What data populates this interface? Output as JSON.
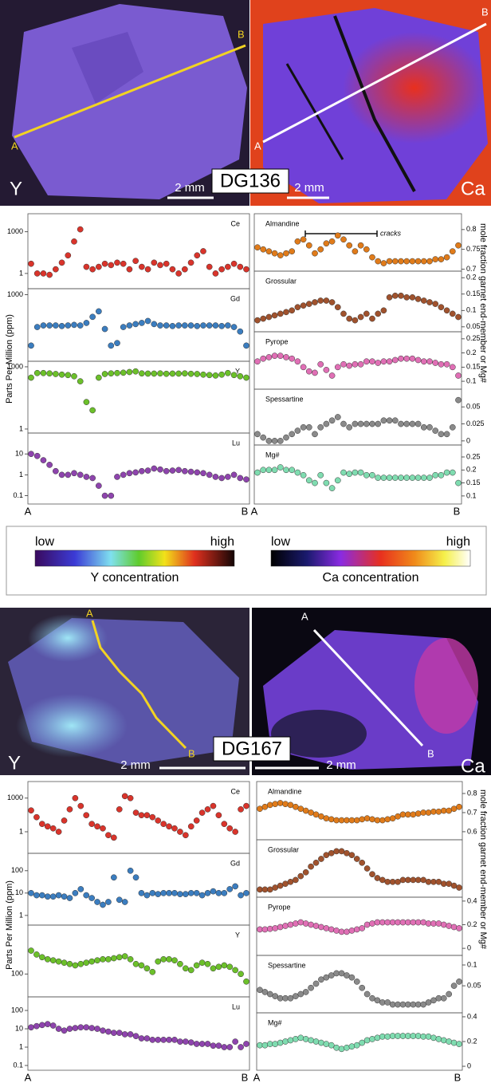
{
  "figures": [
    {
      "sample": "DG136",
      "map_left": "Y",
      "map_right": "Ca",
      "scale_bar": "2 mm",
      "ends": [
        "A",
        "B"
      ]
    },
    {
      "sample": "DG167",
      "map_left": "Y",
      "map_right": "Ca",
      "scale_bar": "2 mm",
      "ends": [
        "A",
        "B"
      ]
    }
  ],
  "y_axis_left": "Parts Per Million (ppm)",
  "y_axis_right": "mole fraction garnet end-member or Mg#",
  "legend": {
    "low": "low",
    "high": "high",
    "y_bar": "Y concentration",
    "ca_bar": "Ca concentration"
  },
  "chart_data": [
    {
      "type": "scatter",
      "title": "Ce",
      "color": "#d9342b",
      "log": true,
      "tick_side": "left",
      "ylim": [
        0.08,
        20000
      ],
      "yticks": [
        1,
        1000
      ],
      "values": [
        5,
        1,
        1,
        0.8,
        2,
        6,
        20,
        200,
        1500,
        3,
        2,
        3,
        5,
        4,
        6,
        5,
        2,
        8,
        3,
        2,
        6,
        4,
        5,
        2,
        1,
        2,
        6,
        20,
        40,
        3,
        1,
        2,
        3,
        5,
        3,
        2
      ]
    },
    {
      "type": "scatter",
      "title": "Gd",
      "color": "#3b7dbf",
      "log": true,
      "tick_side": "left",
      "ylim": [
        0.5,
        2000
      ],
      "yticks": [
        1000
      ],
      "values": [
        3,
        25,
        30,
        30,
        30,
        28,
        30,
        32,
        30,
        40,
        80,
        150,
        20,
        3,
        4,
        25,
        30,
        35,
        40,
        50,
        35,
        30,
        30,
        28,
        30,
        30,
        30,
        28,
        30,
        30,
        30,
        28,
        30,
        25,
        15,
        3
      ]
    },
    {
      "type": "scatter",
      "title": "Y",
      "color": "#6cc02a",
      "log": true,
      "tick_side": "left",
      "ylim": [
        0.64,
        1850
      ],
      "yticks": [
        1,
        1000
      ],
      "values": [
        300,
        500,
        500,
        480,
        450,
        420,
        400,
        350,
        200,
        20,
        8,
        300,
        450,
        480,
        500,
        520,
        560,
        600,
        480,
        470,
        470,
        480,
        460,
        470,
        470,
        480,
        460,
        450,
        420,
        400,
        380,
        420,
        500,
        400,
        350,
        300
      ]
    },
    {
      "type": "scatter",
      "title": "Lu",
      "color": "#8e44ad",
      "log": true,
      "tick_side": "left",
      "ylim": [
        0.04,
        100
      ],
      "yticks": [
        0.1,
        1,
        10
      ],
      "values": [
        10,
        8,
        5,
        3,
        1.5,
        1,
        1,
        1.2,
        1,
        0.8,
        0.7,
        0.3,
        0.1,
        0.1,
        0.8,
        1,
        1.2,
        1.3,
        1.5,
        1.6,
        2,
        1.8,
        1.5,
        1.6,
        1.7,
        1.5,
        1.4,
        1.3,
        1.2,
        1,
        0.8,
        0.7,
        0.8,
        1,
        0.7,
        0.6
      ]
    },
    {
      "type": "scatter",
      "title": "Almandine",
      "color": "#e07b1a",
      "log": false,
      "tick_side": "right",
      "ylim": [
        0.695,
        0.84
      ],
      "yticks": [
        0.7,
        0.75,
        0.8
      ],
      "annotation": "cracks",
      "values": [
        0.755,
        0.75,
        0.745,
        0.74,
        0.735,
        0.74,
        0.745,
        0.77,
        0.775,
        0.76,
        0.74,
        0.75,
        0.765,
        0.77,
        0.785,
        0.775,
        0.76,
        0.745,
        0.76,
        0.75,
        0.73,
        0.72,
        0.715,
        0.72,
        0.72,
        0.72,
        0.72,
        0.72,
        0.72,
        0.72,
        0.72,
        0.725,
        0.725,
        0.73,
        0.745,
        0.76
      ]
    },
    {
      "type": "scatter",
      "title": "Grossular",
      "color": "#a0522d",
      "log": false,
      "tick_side": "right",
      "ylim": [
        0.035,
        0.22
      ],
      "yticks": [
        0.05,
        0.1,
        0.15,
        0.2
      ],
      "values": [
        0.07,
        0.075,
        0.08,
        0.085,
        0.09,
        0.095,
        0.1,
        0.11,
        0.115,
        0.12,
        0.125,
        0.13,
        0.13,
        0.125,
        0.11,
        0.09,
        0.075,
        0.07,
        0.08,
        0.09,
        0.075,
        0.09,
        0.1,
        0.14,
        0.145,
        0.145,
        0.14,
        0.14,
        0.135,
        0.13,
        0.125,
        0.12,
        0.11,
        0.1,
        0.09,
        0.08
      ]
    },
    {
      "type": "scatter",
      "title": "Pyrope",
      "color": "#e06fb5",
      "log": false,
      "tick_side": "right",
      "ylim": [
        0.072,
        0.275
      ],
      "yticks": [
        0.1,
        0.15,
        0.2,
        0.25
      ],
      "values": [
        0.17,
        0.18,
        0.185,
        0.19,
        0.19,
        0.185,
        0.18,
        0.17,
        0.15,
        0.135,
        0.13,
        0.16,
        0.14,
        0.12,
        0.15,
        0.16,
        0.155,
        0.16,
        0.16,
        0.17,
        0.17,
        0.165,
        0.17,
        0.17,
        0.175,
        0.18,
        0.18,
        0.18,
        0.175,
        0.17,
        0.17,
        0.165,
        0.16,
        0.16,
        0.15,
        0.12
      ]
    },
    {
      "type": "scatter",
      "title": "Spessartine",
      "color": "#8a8a8a",
      "log": false,
      "tick_side": "right",
      "ylim": [
        -0.006,
        0.076
      ],
      "yticks": [
        0,
        0.025,
        0.05
      ],
      "values": [
        0.01,
        0.005,
        0,
        0,
        0,
        0.005,
        0.01,
        0.015,
        0.02,
        0.02,
        0.01,
        0.02,
        0.025,
        0.03,
        0.035,
        0.025,
        0.02,
        0.025,
        0.025,
        0.025,
        0.025,
        0.025,
        0.03,
        0.03,
        0.03,
        0.025,
        0.025,
        0.025,
        0.025,
        0.02,
        0.02,
        0.015,
        0.01,
        0.01,
        0.02,
        0.06
      ]
    },
    {
      "type": "scatter",
      "title": "Mg#",
      "color": "#7fdcb0",
      "log": false,
      "tick_side": "right",
      "ylim": [
        0.069,
        0.296
      ],
      "yticks": [
        0.1,
        0.15,
        0.2,
        0.25
      ],
      "values": [
        0.19,
        0.2,
        0.2,
        0.2,
        0.21,
        0.2,
        0.2,
        0.19,
        0.18,
        0.16,
        0.15,
        0.18,
        0.15,
        0.13,
        0.16,
        0.19,
        0.185,
        0.19,
        0.19,
        0.18,
        0.18,
        0.17,
        0.17,
        0.17,
        0.17,
        0.17,
        0.17,
        0.17,
        0.17,
        0.17,
        0.17,
        0.18,
        0.18,
        0.19,
        0.19,
        0.15
      ]
    },
    {
      "type": "scatter",
      "title": "Ce",
      "color": "#d9342b",
      "log": true,
      "tick_side": "left",
      "ylim": [
        0.012,
        30000
      ],
      "yticks": [
        1,
        1000
      ],
      "values": [
        80,
        20,
        5,
        3,
        2,
        1,
        10,
        100,
        1000,
        200,
        30,
        5,
        3,
        2,
        0.5,
        0.3,
        100,
        1500,
        1000,
        50,
        30,
        30,
        20,
        10,
        5,
        3,
        2,
        1,
        0.5,
        3,
        10,
        50,
        100,
        200,
        30,
        5,
        2,
        1,
        100,
        200
      ]
    },
    {
      "type": "scatter",
      "title": "Gd",
      "color": "#3b7dbf",
      "log": true,
      "tick_side": "left",
      "ylim": [
        0.37,
        600
      ],
      "yticks": [
        1,
        10,
        100
      ],
      "values": [
        10,
        8,
        8,
        7,
        7,
        8,
        7,
        6,
        10,
        15,
        8,
        6,
        4,
        3,
        4,
        50,
        5,
        4,
        100,
        50,
        10,
        8,
        10,
        9,
        10,
        10,
        10,
        9,
        9,
        10,
        10,
        8,
        10,
        12,
        10,
        10,
        15,
        20,
        8,
        10
      ]
    },
    {
      "type": "scatter",
      "title": "Y",
      "color": "#6cc02a",
      "log": true,
      "tick_side": "left",
      "ylim": [
        34,
        1000
      ],
      "yticks": [
        100
      ],
      "values": [
        300,
        250,
        220,
        200,
        190,
        180,
        170,
        160,
        150,
        160,
        170,
        180,
        190,
        200,
        200,
        210,
        220,
        230,
        200,
        160,
        150,
        130,
        110,
        180,
        200,
        200,
        190,
        160,
        130,
        120,
        150,
        170,
        160,
        130,
        140,
        150,
        140,
        120,
        100,
        70
      ]
    },
    {
      "type": "scatter",
      "title": "Lu",
      "color": "#8e44ad",
      "log": true,
      "tick_side": "left",
      "ylim": [
        0.055,
        550
      ],
      "yticks": [
        0.1,
        1,
        10,
        100
      ],
      "values": [
        12,
        14,
        16,
        18,
        15,
        10,
        8,
        10,
        11,
        12,
        12,
        11,
        10,
        8,
        7,
        6,
        6,
        5,
        5,
        4,
        3,
        3,
        2.5,
        2.5,
        2.5,
        2.5,
        2.5,
        2,
        2,
        1.8,
        1.5,
        1.5,
        1.5,
        1.2,
        1.2,
        1,
        1,
        2,
        1,
        1.5
      ]
    },
    {
      "type": "scatter",
      "title": "Almandine",
      "color": "#e07b1a",
      "log": false,
      "tick_side": "right",
      "ylim": [
        0.558,
        0.8625
      ],
      "yticks": [
        0.6,
        0.7,
        0.8
      ],
      "values": [
        0.72,
        0.73,
        0.74,
        0.745,
        0.75,
        0.745,
        0.74,
        0.73,
        0.72,
        0.71,
        0.7,
        0.69,
        0.68,
        0.67,
        0.665,
        0.66,
        0.66,
        0.66,
        0.66,
        0.66,
        0.665,
        0.67,
        0.665,
        0.66,
        0.66,
        0.665,
        0.67,
        0.68,
        0.69,
        0.69,
        0.69,
        0.695,
        0.7,
        0.7,
        0.705,
        0.705,
        0.71,
        0.71,
        0.72,
        0.73
      ]
    },
    {
      "type": "scatter",
      "title": "Grossular",
      "color": "#a0522d",
      "log": false,
      "tick_side": "right",
      "ylim": [
        0.03,
        0.18
      ],
      "yticks": [],
      "values": [
        0.05,
        0.05,
        0.05,
        0.055,
        0.06,
        0.065,
        0.07,
        0.075,
        0.085,
        0.095,
        0.11,
        0.12,
        0.13,
        0.14,
        0.145,
        0.15,
        0.15,
        0.145,
        0.14,
        0.13,
        0.12,
        0.105,
        0.09,
        0.08,
        0.075,
        0.07,
        0.07,
        0.07,
        0.075,
        0.075,
        0.075,
        0.075,
        0.075,
        0.07,
        0.07,
        0.07,
        0.065,
        0.065,
        0.06,
        0.055
      ]
    },
    {
      "type": "scatter",
      "title": "Pyrope",
      "color": "#e06fb5",
      "log": false,
      "tick_side": "right",
      "ylim": [
        -0.06,
        0.433
      ],
      "yticks": [
        0,
        0.2,
        0.4
      ],
      "values": [
        0.16,
        0.16,
        0.165,
        0.17,
        0.18,
        0.19,
        0.2,
        0.21,
        0.22,
        0.21,
        0.2,
        0.19,
        0.18,
        0.17,
        0.16,
        0.15,
        0.14,
        0.14,
        0.15,
        0.16,
        0.17,
        0.2,
        0.21,
        0.22,
        0.22,
        0.22,
        0.22,
        0.22,
        0.22,
        0.22,
        0.22,
        0.22,
        0.22,
        0.21,
        0.21,
        0.21,
        0.2,
        0.19,
        0.18,
        0.17
      ]
    },
    {
      "type": "scatter",
      "title": "Spessartine",
      "color": "#8a8a8a",
      "log": false,
      "tick_side": "right",
      "ylim": [
        -0.015,
        0.123
      ],
      "yticks": [
        0.05,
        0.1
      ],
      "values": [
        0.04,
        0.035,
        0.03,
        0.025,
        0.02,
        0.02,
        0.02,
        0.025,
        0.03,
        0.035,
        0.045,
        0.055,
        0.065,
        0.07,
        0.075,
        0.08,
        0.08,
        0.075,
        0.07,
        0.06,
        0.045,
        0.03,
        0.02,
        0.015,
        0.01,
        0.01,
        0.005,
        0.005,
        0.005,
        0.005,
        0.005,
        0.005,
        0.005,
        0.01,
        0.015,
        0.02,
        0.02,
        0.03,
        0.05,
        0.06
      ]
    },
    {
      "type": "scatter",
      "title": "Mg#",
      "color": "#7fdcb0",
      "log": false,
      "tick_side": "right",
      "ylim": [
        -0.032,
        0.432
      ],
      "yticks": [
        0,
        0.2,
        0.4
      ],
      "values": [
        0.17,
        0.17,
        0.18,
        0.18,
        0.19,
        0.2,
        0.21,
        0.22,
        0.23,
        0.22,
        0.21,
        0.2,
        0.19,
        0.18,
        0.17,
        0.15,
        0.14,
        0.15,
        0.16,
        0.17,
        0.19,
        0.21,
        0.22,
        0.23,
        0.24,
        0.24,
        0.245,
        0.245,
        0.245,
        0.245,
        0.245,
        0.245,
        0.24,
        0.24,
        0.23,
        0.22,
        0.21,
        0.2,
        0.19,
        0.18
      ]
    }
  ]
}
